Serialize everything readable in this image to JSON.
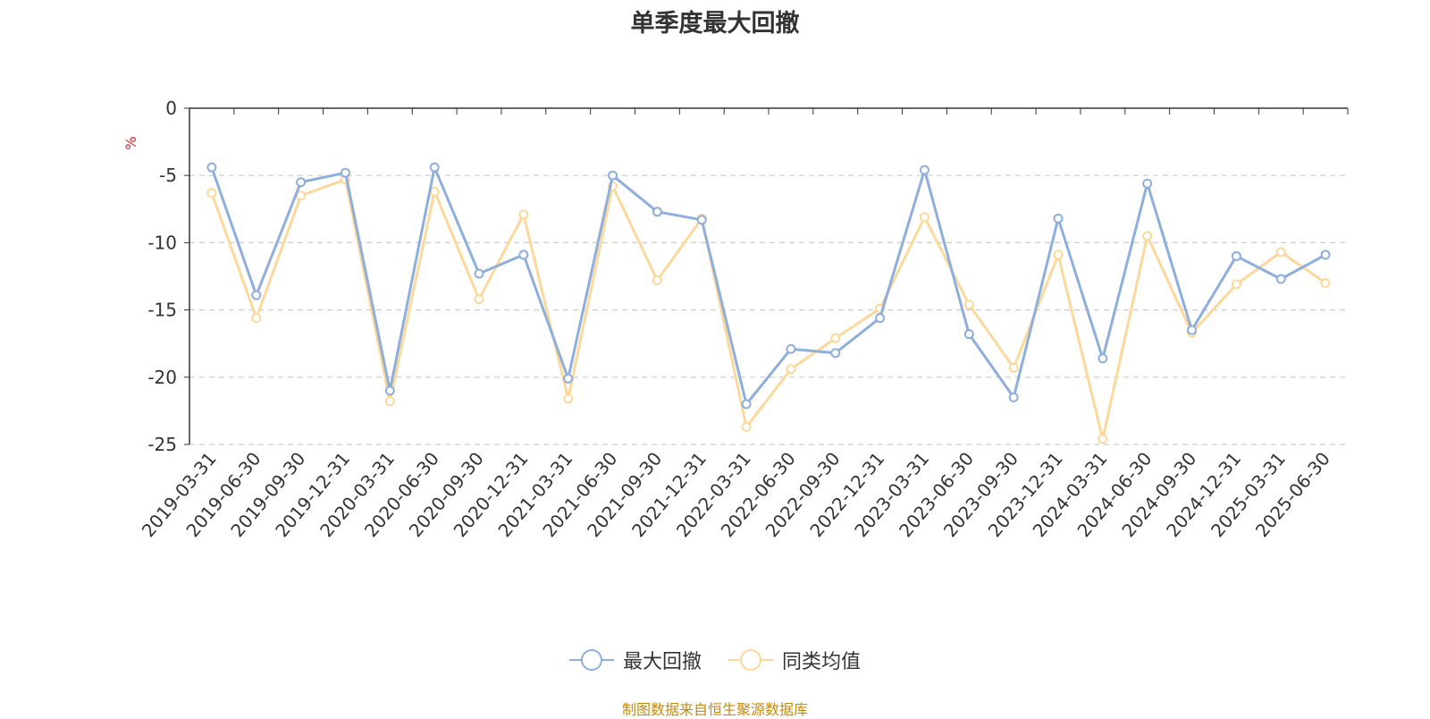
{
  "chart_data": {
    "type": "line",
    "title": "单季度最大回撤",
    "ylabel": "%",
    "ylim": [
      -25,
      0
    ],
    "yticks": [
      0,
      -5,
      -10,
      -15,
      -20,
      -25
    ],
    "grid": true,
    "legend_position": "bottom",
    "x": [
      "2019-03-31",
      "2019-06-30",
      "2019-09-30",
      "2019-12-31",
      "2020-03-31",
      "2020-06-30",
      "2020-09-30",
      "2020-12-31",
      "2021-03-31",
      "2021-06-30",
      "2021-09-30",
      "2021-12-31",
      "2022-03-31",
      "2022-06-30",
      "2022-09-30",
      "2022-12-31",
      "2023-03-31",
      "2023-06-30",
      "2023-09-30",
      "2023-12-31",
      "2024-03-31",
      "2024-06-30",
      "2024-09-30",
      "2024-12-31",
      "2025-03-31",
      "2025-06-30"
    ],
    "series": [
      {
        "name": "最大回撤",
        "color": "#8eaedc",
        "values": [
          -4.4,
          -13.9,
          -5.5,
          -4.8,
          -21.0,
          -4.4,
          -12.3,
          -10.9,
          -20.1,
          -5.0,
          -7.7,
          -8.3,
          -22.0,
          -17.9,
          -18.2,
          -15.6,
          -4.6,
          -16.8,
          -21.5,
          -8.2,
          -18.6,
          -5.6,
          -16.5,
          -11.0,
          -12.7,
          -10.9
        ]
      },
      {
        "name": "同类均值",
        "color": "#fcd99b",
        "values": [
          -6.3,
          -15.6,
          -6.5,
          -5.3,
          -21.8,
          -6.2,
          -14.2,
          -7.9,
          -21.6,
          -5.8,
          -12.8,
          -8.2,
          -23.7,
          -19.4,
          -17.1,
          -14.9,
          -8.1,
          -14.6,
          -19.3,
          -10.9,
          -24.6,
          -9.5,
          -16.7,
          -13.1,
          -10.7,
          -13.0
        ]
      }
    ]
  },
  "source_note": "制图数据来自恒生聚源数据库"
}
